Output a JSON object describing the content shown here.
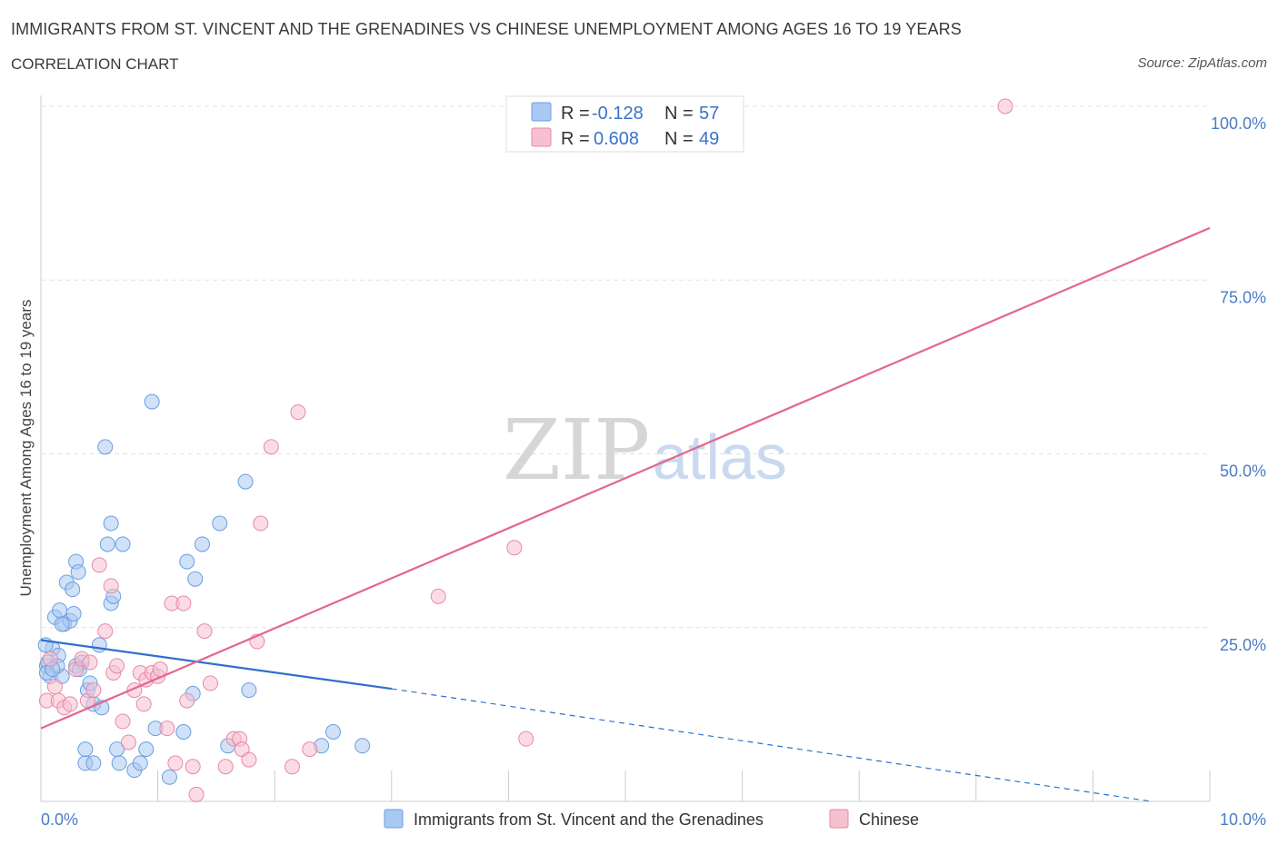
{
  "header": {
    "title": "IMMIGRANTS FROM ST. VINCENT AND THE GRENADINES VS CHINESE UNEMPLOYMENT AMONG AGES 16 TO 19 YEARS",
    "subtitle": "CORRELATION CHART",
    "source": "Source: ZipAtlas.com"
  },
  "watermark": {
    "zip": "ZIP",
    "atlas": "atlas"
  },
  "legend": {
    "rows": [
      {
        "r_label": "R =",
        "r_value": "-0.128",
        "n_label": "N =",
        "n_value": "57",
        "color": "#a9c8f2",
        "stroke": "#6b9ee0"
      },
      {
        "r_label": "R =",
        "r_value": "0.608",
        "n_label": "N =",
        "n_value": "49",
        "color": "#f7c0d0",
        "stroke": "#e58aa6"
      }
    ]
  },
  "bottom_legend": [
    {
      "label": "Immigrants from St. Vincent and the Grenadines",
      "color": "#a9c8f2",
      "stroke": "#6b9ee0"
    },
    {
      "label": "Chinese",
      "color": "#f7c0d0",
      "stroke": "#e58aa6"
    }
  ],
  "chart_data": {
    "type": "scatter",
    "title": "IMMIGRANTS FROM ST. VINCENT AND THE GRENADINES VS CHINESE UNEMPLOYMENT AMONG AGES 16 TO 19 YEARS",
    "xlabel": "",
    "ylabel": "Unemployment Among Ages 16 to 19 years",
    "xlim": [
      0,
      10
    ],
    "ylim": [
      0,
      100
    ],
    "x_tick_labels": [
      "0.0%",
      "10.0%"
    ],
    "y_tick_labels": [
      "100.0%",
      "75.0%",
      "50.0%",
      "25.0%"
    ],
    "y_ticks": [
      100,
      75,
      50,
      25
    ],
    "grid": true,
    "legend_position": "top-center",
    "series": [
      {
        "name": "Immigrants from St. Vincent and the Grenadines",
        "color": "#a9c8f2",
        "stroke": "#6b9ee0",
        "trend": {
          "x0": 0,
          "y0": 23.2,
          "x1": 3.0,
          "y1": 16.2,
          "dashed_to_x": 9.5,
          "dashed_to_y": 0.0,
          "color": "#2f6fcf"
        },
        "points": [
          [
            0.05,
            19.5
          ],
          [
            0.08,
            18.0
          ],
          [
            0.1,
            22.0
          ],
          [
            0.12,
            26.5
          ],
          [
            0.15,
            21.0
          ],
          [
            0.16,
            27.5
          ],
          [
            0.18,
            18.0
          ],
          [
            0.2,
            25.5
          ],
          [
            0.22,
            31.5
          ],
          [
            0.25,
            26.0
          ],
          [
            0.27,
            30.5
          ],
          [
            0.28,
            27.0
          ],
          [
            0.3,
            19.5
          ],
          [
            0.3,
            34.5
          ],
          [
            0.32,
            33.0
          ],
          [
            0.35,
            20.0
          ],
          [
            0.38,
            5.5
          ],
          [
            0.38,
            7.5
          ],
          [
            0.4,
            16.0
          ],
          [
            0.42,
            17.0
          ],
          [
            0.45,
            14.0
          ],
          [
            0.45,
            5.5
          ],
          [
            0.5,
            22.5
          ],
          [
            0.52,
            13.5
          ],
          [
            0.55,
            51.0
          ],
          [
            0.57,
            37.0
          ],
          [
            0.6,
            28.5
          ],
          [
            0.6,
            40.0
          ],
          [
            0.62,
            29.5
          ],
          [
            0.65,
            7.5
          ],
          [
            0.67,
            5.5
          ],
          [
            0.7,
            37.0
          ],
          [
            0.8,
            4.5
          ],
          [
            0.85,
            5.5
          ],
          [
            0.9,
            7.5
          ],
          [
            0.95,
            57.5
          ],
          [
            0.98,
            10.5
          ],
          [
            1.1,
            3.5
          ],
          [
            1.22,
            10.0
          ],
          [
            1.25,
            34.5
          ],
          [
            1.3,
            15.5
          ],
          [
            1.32,
            32.0
          ],
          [
            1.38,
            37.0
          ],
          [
            1.53,
            40.0
          ],
          [
            1.6,
            8.0
          ],
          [
            1.75,
            46.0
          ],
          [
            1.78,
            16.0
          ],
          [
            2.4,
            8.0
          ],
          [
            2.5,
            10.0
          ],
          [
            2.75,
            8.0
          ],
          [
            0.04,
            22.5
          ],
          [
            0.06,
            20.0
          ],
          [
            0.14,
            19.5
          ],
          [
            0.05,
            18.5
          ],
          [
            0.33,
            19.0
          ],
          [
            0.1,
            19.0
          ],
          [
            0.18,
            25.5
          ]
        ]
      },
      {
        "name": "Chinese",
        "color": "#f7c0d0",
        "stroke": "#e58aa6",
        "trend": {
          "x0": 0,
          "y0": 10.5,
          "x1": 10.0,
          "y1": 82.5,
          "color": "#e36690"
        },
        "points": [
          [
            0.05,
            14.5
          ],
          [
            0.08,
            20.5
          ],
          [
            0.12,
            16.5
          ],
          [
            0.15,
            14.5
          ],
          [
            0.2,
            13.5
          ],
          [
            0.25,
            14.0
          ],
          [
            0.3,
            19.0
          ],
          [
            0.35,
            20.5
          ],
          [
            0.4,
            14.5
          ],
          [
            0.42,
            20.0
          ],
          [
            0.45,
            16.0
          ],
          [
            0.5,
            34.0
          ],
          [
            0.55,
            24.5
          ],
          [
            0.6,
            31.0
          ],
          [
            0.62,
            18.5
          ],
          [
            0.65,
            19.5
          ],
          [
            0.7,
            11.5
          ],
          [
            0.75,
            8.5
          ],
          [
            0.8,
            16.0
          ],
          [
            0.85,
            18.5
          ],
          [
            0.88,
            14.0
          ],
          [
            0.9,
            17.5
          ],
          [
            0.95,
            18.5
          ],
          [
            1.0,
            18.0
          ],
          [
            1.02,
            19.0
          ],
          [
            1.08,
            10.5
          ],
          [
            1.12,
            28.5
          ],
          [
            1.15,
            5.5
          ],
          [
            1.22,
            28.5
          ],
          [
            1.25,
            14.5
          ],
          [
            1.3,
            5.0
          ],
          [
            1.33,
            1.0
          ],
          [
            1.4,
            24.5
          ],
          [
            1.45,
            17.0
          ],
          [
            1.58,
            5.0
          ],
          [
            1.65,
            9.0
          ],
          [
            1.7,
            9.0
          ],
          [
            1.72,
            7.5
          ],
          [
            1.78,
            6.0
          ],
          [
            1.85,
            23.0
          ],
          [
            1.88,
            40.0
          ],
          [
            1.97,
            51.0
          ],
          [
            2.15,
            5.0
          ],
          [
            2.2,
            56.0
          ],
          [
            2.3,
            7.5
          ],
          [
            3.4,
            29.5
          ],
          [
            4.05,
            36.5
          ],
          [
            4.15,
            9.0
          ],
          [
            8.25,
            100.0
          ]
        ]
      }
    ]
  }
}
